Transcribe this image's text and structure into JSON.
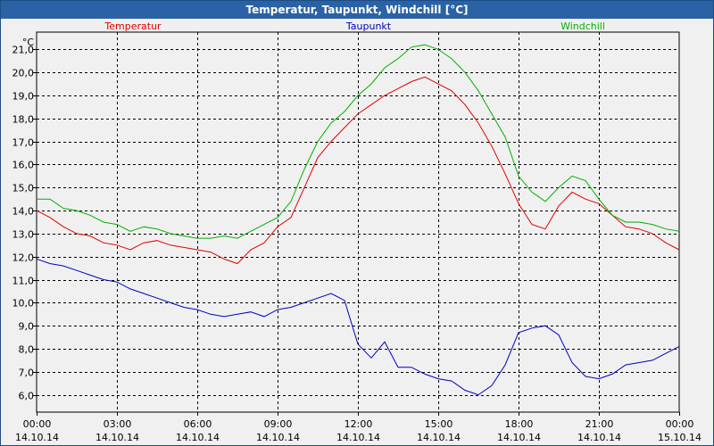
{
  "window": {
    "title": "Temperatur, Taupunkt, Windchill [°C]"
  },
  "colors": {
    "background": "#f0f0f0",
    "plot_background": "#f0f0f0",
    "grid": "#000000",
    "titlebar": "#2a62a5",
    "temperatur": "#e00000",
    "taupunkt": "#0000c0",
    "windchill": "#00b000"
  },
  "chart_data": {
    "type": "line",
    "title": "Temperatur, Taupunkt, Windchill [°C]",
    "ylabel": "°C",
    "ylim": [
      5.25,
      21.75
    ],
    "y_ticks": [
      6.0,
      7.0,
      8.0,
      9.0,
      10.0,
      11.0,
      12.0,
      13.0,
      14.0,
      15.0,
      16.0,
      17.0,
      18.0,
      19.0,
      20.0,
      21.0
    ],
    "y_tick_labels": [
      "6,0",
      "7,0",
      "8,0",
      "9,0",
      "10,0",
      "11,0",
      "12,0",
      "13,0",
      "14,0",
      "15,0",
      "16,0",
      "17,0",
      "18,0",
      "19,0",
      "20,0",
      "21,0"
    ],
    "x_unit": "hours from 14.10.14 00:00",
    "xlim": [
      0,
      24
    ],
    "x_ticks": [
      0,
      3,
      6,
      9,
      12,
      15,
      18,
      21,
      24
    ],
    "x_tick_labels": [
      [
        "00:00",
        "14.10.14"
      ],
      [
        "03:00",
        "14.10.14"
      ],
      [
        "06:00",
        "14.10.14"
      ],
      [
        "09:00",
        "14.10.14"
      ],
      [
        "12:00",
        "14.10.14"
      ],
      [
        "15:00",
        "14.10.14"
      ],
      [
        "18:00",
        "14.10.14"
      ],
      [
        "21:00",
        "14.10.14"
      ],
      [
        "00:00",
        "15.10.14"
      ]
    ],
    "grid": true,
    "legend_position": "top",
    "series": [
      {
        "name": "Temperatur",
        "color": "#e00000",
        "x": [
          0,
          0.5,
          1,
          1.5,
          2,
          2.5,
          3,
          3.5,
          4,
          4.5,
          5,
          5.5,
          6,
          6.5,
          7,
          7.5,
          8,
          8.5,
          9,
          9.5,
          10,
          10.5,
          11,
          11.5,
          12,
          12.5,
          13,
          13.5,
          14,
          14.5,
          15,
          15.5,
          16,
          16.5,
          17,
          17.5,
          18,
          18.5,
          19,
          19.5,
          20,
          20.5,
          21,
          21.5,
          22,
          22.5,
          23,
          23.5,
          24
        ],
        "y": [
          14.0,
          13.7,
          13.3,
          13.0,
          12.9,
          12.6,
          12.5,
          12.3,
          12.6,
          12.7,
          12.5,
          12.4,
          12.3,
          12.2,
          11.9,
          11.7,
          12.3,
          12.6,
          13.3,
          13.7,
          15.0,
          16.3,
          17.0,
          17.6,
          18.2,
          18.6,
          19.0,
          19.3,
          19.6,
          19.8,
          19.5,
          19.2,
          18.6,
          17.8,
          16.8,
          15.6,
          14.3,
          13.4,
          13.2,
          14.2,
          14.8,
          14.5,
          14.3,
          13.8,
          13.3,
          13.2,
          13.0,
          12.6,
          12.3
        ]
      },
      {
        "name": "Taupunkt",
        "color": "#0000c0",
        "x": [
          0,
          0.5,
          1,
          1.5,
          2,
          2.5,
          3,
          3.5,
          4,
          4.5,
          5,
          5.5,
          6,
          6.5,
          7,
          7.5,
          8,
          8.5,
          9,
          9.5,
          10,
          10.5,
          11,
          11.5,
          12,
          12.5,
          13,
          13.5,
          14,
          14.5,
          15,
          15.5,
          16,
          16.5,
          17,
          17.5,
          18,
          18.5,
          19,
          19.5,
          20,
          20.5,
          21,
          21.5,
          22,
          22.5,
          23,
          23.5,
          24
        ],
        "y": [
          11.9,
          11.7,
          11.6,
          11.4,
          11.2,
          11.0,
          10.9,
          10.6,
          10.4,
          10.2,
          10.0,
          9.8,
          9.7,
          9.5,
          9.4,
          9.5,
          9.6,
          9.4,
          9.7,
          9.8,
          10.0,
          10.2,
          10.4,
          10.1,
          8.2,
          7.6,
          8.3,
          7.2,
          7.2,
          6.9,
          6.7,
          6.6,
          6.2,
          6.0,
          6.4,
          7.3,
          8.7,
          8.9,
          9.0,
          8.6,
          7.4,
          6.8,
          6.7,
          6.9,
          7.3,
          7.4,
          7.5,
          7.8,
          8.1
        ]
      },
      {
        "name": "Windchill",
        "color": "#00b000",
        "x": [
          0,
          0.5,
          1,
          1.5,
          2,
          2.5,
          3,
          3.5,
          4,
          4.5,
          5,
          5.5,
          6,
          6.5,
          7,
          7.5,
          8,
          8.5,
          9,
          9.5,
          10,
          10.5,
          11,
          11.5,
          12,
          12.5,
          13,
          13.5,
          14,
          14.5,
          15,
          15.5,
          16,
          16.5,
          17,
          17.5,
          18,
          18.5,
          19,
          19.5,
          20,
          20.5,
          21,
          21.5,
          22,
          22.5,
          23,
          23.5,
          24
        ],
        "y": [
          14.5,
          14.5,
          14.1,
          14.0,
          13.8,
          13.5,
          13.4,
          13.1,
          13.3,
          13.2,
          13.0,
          12.9,
          12.8,
          12.8,
          12.9,
          12.8,
          13.1,
          13.4,
          13.7,
          14.4,
          15.8,
          17.0,
          17.8,
          18.3,
          19.0,
          19.5,
          20.2,
          20.6,
          21.1,
          21.2,
          21.0,
          20.6,
          20.0,
          19.2,
          18.2,
          17.2,
          15.5,
          14.8,
          14.4,
          15.0,
          15.5,
          15.3,
          14.5,
          13.8,
          13.5,
          13.5,
          13.4,
          13.2,
          13.1
        ]
      }
    ]
  }
}
